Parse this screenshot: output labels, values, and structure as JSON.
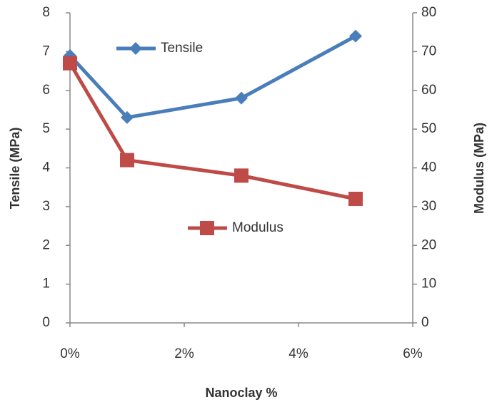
{
  "chart_data": {
    "type": "line",
    "x_label": "Nanoclay %",
    "y_label": "Tensile (MPa)",
    "y2_label": "Modulus (MPa)",
    "x": [
      0,
      1,
      3,
      5
    ],
    "xlim": [
      0,
      6
    ],
    "xticks": [
      {
        "value": 0,
        "label": "0%"
      },
      {
        "value": 2,
        "label": "2%"
      },
      {
        "value": 4,
        "label": "4%"
      },
      {
        "value": 6,
        "label": "6%"
      }
    ],
    "ylim": [
      0,
      8
    ],
    "yticks": [
      0,
      1,
      2,
      3,
      4,
      5,
      6,
      7,
      8
    ],
    "y2lim": [
      0,
      80
    ],
    "y2ticks": [
      0,
      10,
      20,
      30,
      40,
      50,
      60,
      70,
      80
    ],
    "grid": false,
    "series": [
      {
        "name": "Tensile",
        "color": "#4a7ebb",
        "marker": "diamond",
        "values": [
          6.9,
          5.3,
          5.8,
          7.4
        ]
      },
      {
        "name": "Modulus",
        "color": "#be4b48",
        "marker": "square",
        "axis": "y2",
        "values": [
          67,
          42,
          38,
          32
        ]
      }
    ]
  }
}
